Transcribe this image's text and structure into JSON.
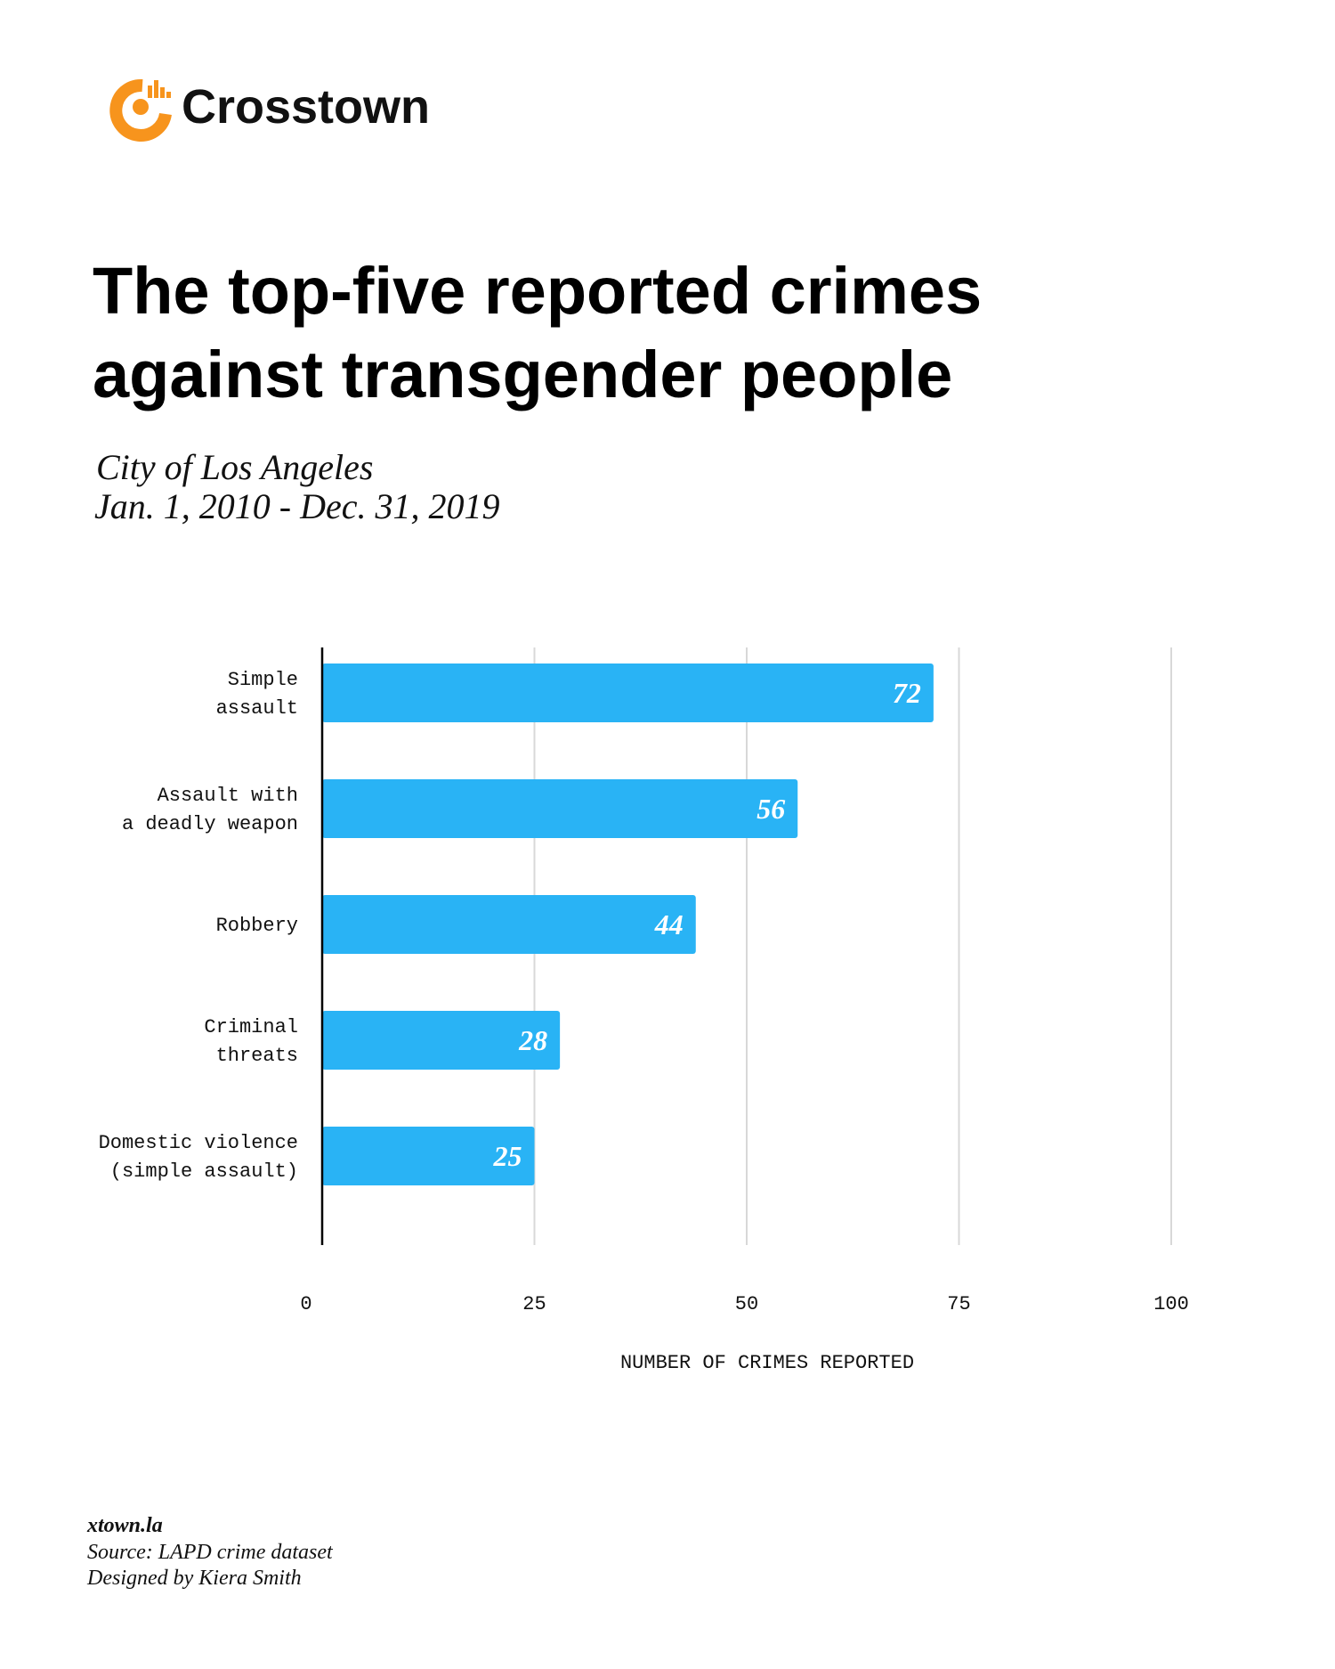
{
  "chart_data": {
    "type": "bar",
    "orientation": "horizontal",
    "brand": "Crosstown",
    "title": [
      "The top-five reported crimes",
      "against transgender people"
    ],
    "subtitle": [
      "City of Los Angeles",
      "Jan. 1, 2010 - Dec. 31, 2019"
    ],
    "categories": [
      [
        "Simple",
        "assault"
      ],
      [
        "Assault with",
        "a deadly weapon"
      ],
      [
        "Robbery"
      ],
      [
        "Criminal",
        "threats"
      ],
      [
        "Domestic violence",
        "(simple assault)"
      ]
    ],
    "values": [
      72,
      56,
      44,
      28,
      25
    ],
    "color": "#29b3f5",
    "xlim": [
      0,
      100
    ],
    "xticks": [
      0,
      25,
      50,
      75,
      100
    ],
    "xlabel": "NUMBER OF CRIMES REPORTED",
    "grid": true,
    "footer": [
      "xtown.la",
      "Source: LAPD crime dataset",
      "Designed by Kiera Smith"
    ]
  }
}
